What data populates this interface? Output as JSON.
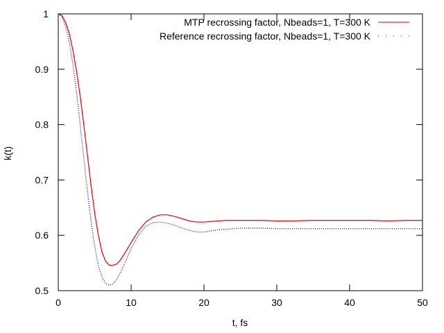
{
  "chart_data": {
    "type": "line",
    "xlabel": "t, fs",
    "ylabel": "k(t)",
    "xlim": [
      0,
      50
    ],
    "ylim": [
      0.5,
      1.0
    ],
    "x_ticks": [
      0,
      10,
      20,
      30,
      40,
      50
    ],
    "y_ticks": [
      0.5,
      0.6,
      0.7,
      0.8,
      0.9,
      1.0
    ],
    "x_tick_labels": [
      "0",
      "10",
      "20",
      "30",
      "40",
      "50"
    ],
    "y_tick_labels": [
      "0.5",
      "0.6",
      "0.7",
      "0.8",
      "0.9",
      "1"
    ],
    "grid": false,
    "legend_position": "top-right",
    "series": [
      {
        "name": "MTP recrossing factor, Nbeads=1, T=300 K",
        "color": "#e00000",
        "style": "solid",
        "x": [
          0,
          0.5,
          1,
          1.5,
          2,
          2.5,
          3,
          3.5,
          4,
          4.5,
          5,
          5.5,
          6,
          6.5,
          7,
          7.5,
          8,
          8.5,
          9,
          10,
          11,
          12,
          13,
          14,
          15,
          16,
          17,
          18,
          19,
          20,
          21,
          22,
          23,
          24,
          25,
          26,
          28,
          30,
          32,
          35,
          38,
          40,
          43,
          45,
          48,
          50
        ],
        "y": [
          1.0,
          0.997,
          0.985,
          0.965,
          0.935,
          0.897,
          0.852,
          0.8,
          0.745,
          0.69,
          0.64,
          0.6,
          0.57,
          0.553,
          0.546,
          0.546,
          0.548,
          0.555,
          0.565,
          0.587,
          0.608,
          0.624,
          0.633,
          0.637,
          0.637,
          0.634,
          0.63,
          0.626,
          0.624,
          0.624,
          0.625,
          0.626,
          0.627,
          0.627,
          0.627,
          0.627,
          0.627,
          0.626,
          0.626,
          0.627,
          0.627,
          0.627,
          0.627,
          0.626,
          0.627,
          0.627
        ]
      },
      {
        "name": "Reference recrossing factor, Nbeads=1, T=300 K",
        "color": "#0000e0",
        "style": "dotted",
        "x": [
          0,
          0.5,
          1,
          1.5,
          2,
          2.5,
          3,
          3.5,
          4,
          4.5,
          5,
          5.5,
          6,
          6.5,
          7,
          7.5,
          8,
          8.5,
          9,
          10,
          11,
          12,
          13,
          14,
          15,
          16,
          17,
          18,
          19,
          20,
          21,
          22,
          23,
          24,
          25,
          26,
          28,
          30,
          32,
          35,
          38,
          40,
          43,
          45,
          48,
          50
        ],
        "y": [
          1.0,
          0.995,
          0.978,
          0.95,
          0.91,
          0.86,
          0.8,
          0.74,
          0.68,
          0.625,
          0.58,
          0.545,
          0.525,
          0.513,
          0.51,
          0.512,
          0.52,
          0.532,
          0.546,
          0.576,
          0.6,
          0.616,
          0.623,
          0.624,
          0.622,
          0.618,
          0.613,
          0.609,
          0.606,
          0.606,
          0.608,
          0.61,
          0.611,
          0.612,
          0.613,
          0.613,
          0.613,
          0.612,
          0.612,
          0.612,
          0.612,
          0.612,
          0.612,
          0.612,
          0.612,
          0.612
        ]
      }
    ]
  }
}
